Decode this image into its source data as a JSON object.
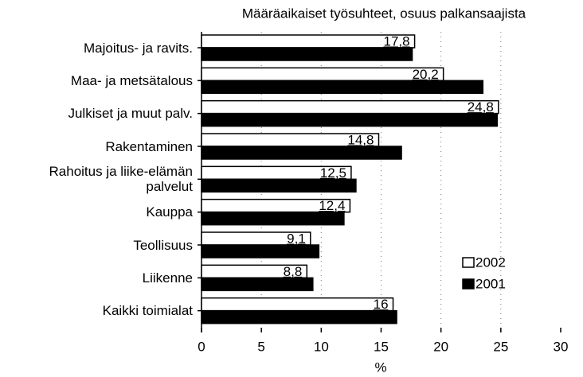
{
  "chart_data": {
    "type": "bar",
    "orientation": "horizontal",
    "title": "Määräaikaiset työsuhteet, osuus palkansaajista",
    "xlabel": "%",
    "categories": [
      "Majoitus- ja ravits.",
      "Maa- ja metsätalous",
      "Julkiset ja muut palv.",
      "Rakentaminen",
      "Rahoitus ja liike-elämän\npalvelut",
      "Kauppa",
      "Teollisuus",
      "Liikenne",
      "Kaikki toimialat"
    ],
    "series": [
      {
        "name": "2002",
        "color": "#ffffff",
        "values": [
          17.8,
          20.2,
          24.8,
          14.8,
          12.5,
          12.4,
          9.1,
          8.8,
          16
        ],
        "value_labels": [
          "17,8",
          "20,2",
          "24,8",
          "14,8",
          "12,5",
          "12,4",
          "9,1",
          "8,8",
          "16"
        ]
      },
      {
        "name": "2001",
        "color": "#000000",
        "values": [
          17.6,
          23.5,
          24.7,
          16.7,
          12.9,
          11.9,
          9.8,
          9.3,
          16.3
        ]
      }
    ],
    "xlim": [
      0,
      30
    ],
    "xticks": [
      0,
      5,
      10,
      15,
      20,
      25,
      30
    ],
    "grid": true,
    "legend": "lower right"
  }
}
